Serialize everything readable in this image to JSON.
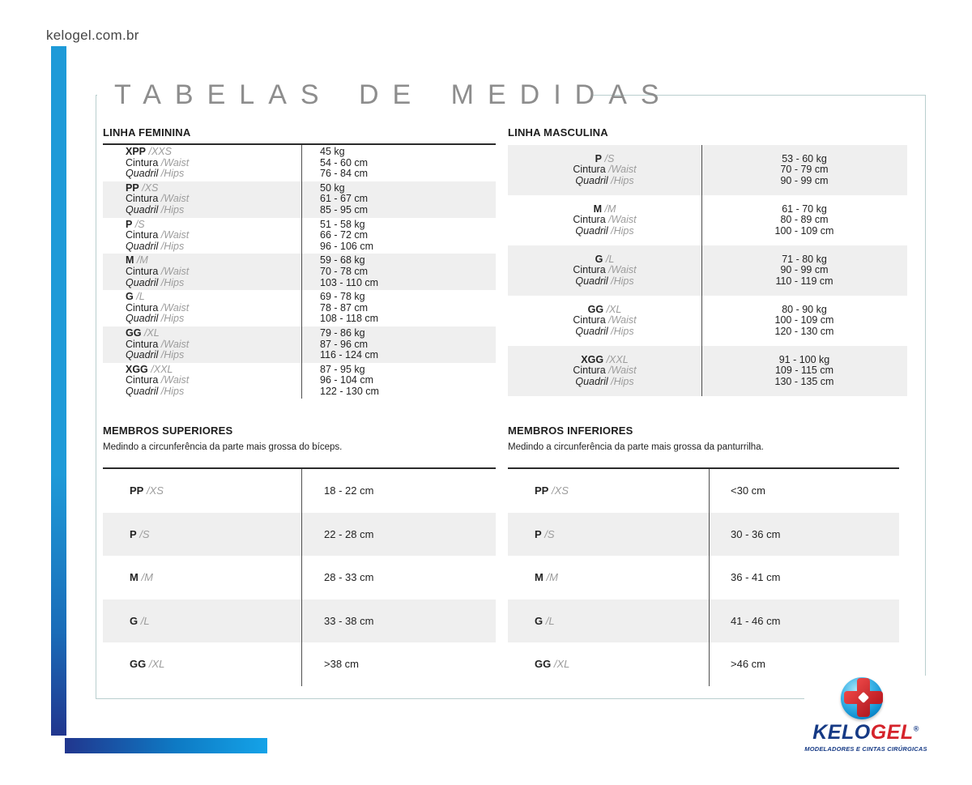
{
  "header": {
    "site": "kelogel.com.br",
    "title": "TABELAS DE MEDIDAS"
  },
  "shared": {
    "waist": "Cintura",
    "waist_en": "/Waist",
    "hips": "Quadril",
    "hips_en": "/Hips"
  },
  "feminina": {
    "title": "LINHA FEMININA",
    "rows": [
      {
        "size": "XPP",
        "size_en": "/XXS",
        "weight": "45 kg",
        "waist_cm": "54 - 60 cm",
        "hips_cm": "76 - 84 cm"
      },
      {
        "size": "PP",
        "size_en": "/XS",
        "weight": "50 kg",
        "waist_cm": "61 - 67 cm",
        "hips_cm": "85 - 95 cm"
      },
      {
        "size": "P",
        "size_en": "/S",
        "weight": "51 - 58 kg",
        "waist_cm": "66 - 72 cm",
        "hips_cm": "96 - 106 cm"
      },
      {
        "size": "M",
        "size_en": "/M",
        "weight": "59 - 68 kg",
        "waist_cm": "70 - 78 cm",
        "hips_cm": "103 - 110 cm"
      },
      {
        "size": "G",
        "size_en": "/L",
        "weight": "69 - 78 kg",
        "waist_cm": "78 - 87 cm",
        "hips_cm": "108 - 118 cm"
      },
      {
        "size": "GG",
        "size_en": "/XL",
        "weight": "79 - 86 kg",
        "waist_cm": "87 - 96 cm",
        "hips_cm": "116 - 124 cm"
      },
      {
        "size": "XGG",
        "size_en": "/XXL",
        "weight": "87 - 95 kg",
        "waist_cm": "96 - 104 cm",
        "hips_cm": "122 - 130 cm"
      }
    ]
  },
  "masculina": {
    "title": "LINHA MASCULINA",
    "rows": [
      {
        "size": "P",
        "size_en": "/S",
        "weight": "53 - 60 kg",
        "waist_cm": "70 - 79 cm",
        "hips_cm": "90 - 99 cm"
      },
      {
        "size": "M",
        "size_en": "/M",
        "weight": "61 - 70 kg",
        "waist_cm": "80 - 89 cm",
        "hips_cm": "100 - 109 cm"
      },
      {
        "size": "G",
        "size_en": "/L",
        "weight": "71 - 80 kg",
        "waist_cm": "90 - 99 cm",
        "hips_cm": "110 - 119 cm"
      },
      {
        "size": "GG",
        "size_en": "/XL",
        "weight": "80 - 90 kg",
        "waist_cm": "100 - 109 cm",
        "hips_cm": "120 - 130 cm"
      },
      {
        "size": "XGG",
        "size_en": "/XXL",
        "weight": "91 - 100 kg",
        "waist_cm": "109 - 115 cm",
        "hips_cm": "130 - 135 cm"
      }
    ]
  },
  "superiores": {
    "title": "MEMBROS SUPERIORES",
    "subtitle": "Medindo a circunferência da parte mais grossa do bíceps.",
    "rows": [
      {
        "size": "PP",
        "size_en": "/XS",
        "value": "18 - 22 cm"
      },
      {
        "size": "P",
        "size_en": "/S",
        "value": "22 - 28 cm"
      },
      {
        "size": "M",
        "size_en": "/M",
        "value": "28 - 33 cm"
      },
      {
        "size": "G",
        "size_en": "/L",
        "value": "33 - 38 cm"
      },
      {
        "size": "GG",
        "size_en": "/XL",
        "value": ">38 cm"
      }
    ]
  },
  "inferiores": {
    "title": "MEMBROS INFERIORES",
    "subtitle": "Medindo a circunferência da parte mais grossa da panturrilha.",
    "rows": [
      {
        "size": "PP",
        "size_en": "/XS",
        "value": "<30 cm"
      },
      {
        "size": "P",
        "size_en": "/S",
        "value": "30 - 36 cm"
      },
      {
        "size": "M",
        "size_en": "/M",
        "value": "36 - 41 cm"
      },
      {
        "size": "G",
        "size_en": "/L",
        "value": "41 - 46 cm"
      },
      {
        "size": "GG",
        "size_en": "/XL",
        "value": ">46 cm"
      }
    ]
  },
  "logo": {
    "name_primary": "KELO",
    "name_secondary": "GEL",
    "registered": "®",
    "tagline": "MODELADORES E CINTAS CIRÚRGICAS"
  },
  "colors": {
    "accent_blue": "#1e9ad8",
    "navy": "#21368e",
    "brand_red": "#d5232b",
    "row_gray": "#efefef",
    "frame_teal": "#b9cfce",
    "title_gray": "#8d8d8d"
  }
}
